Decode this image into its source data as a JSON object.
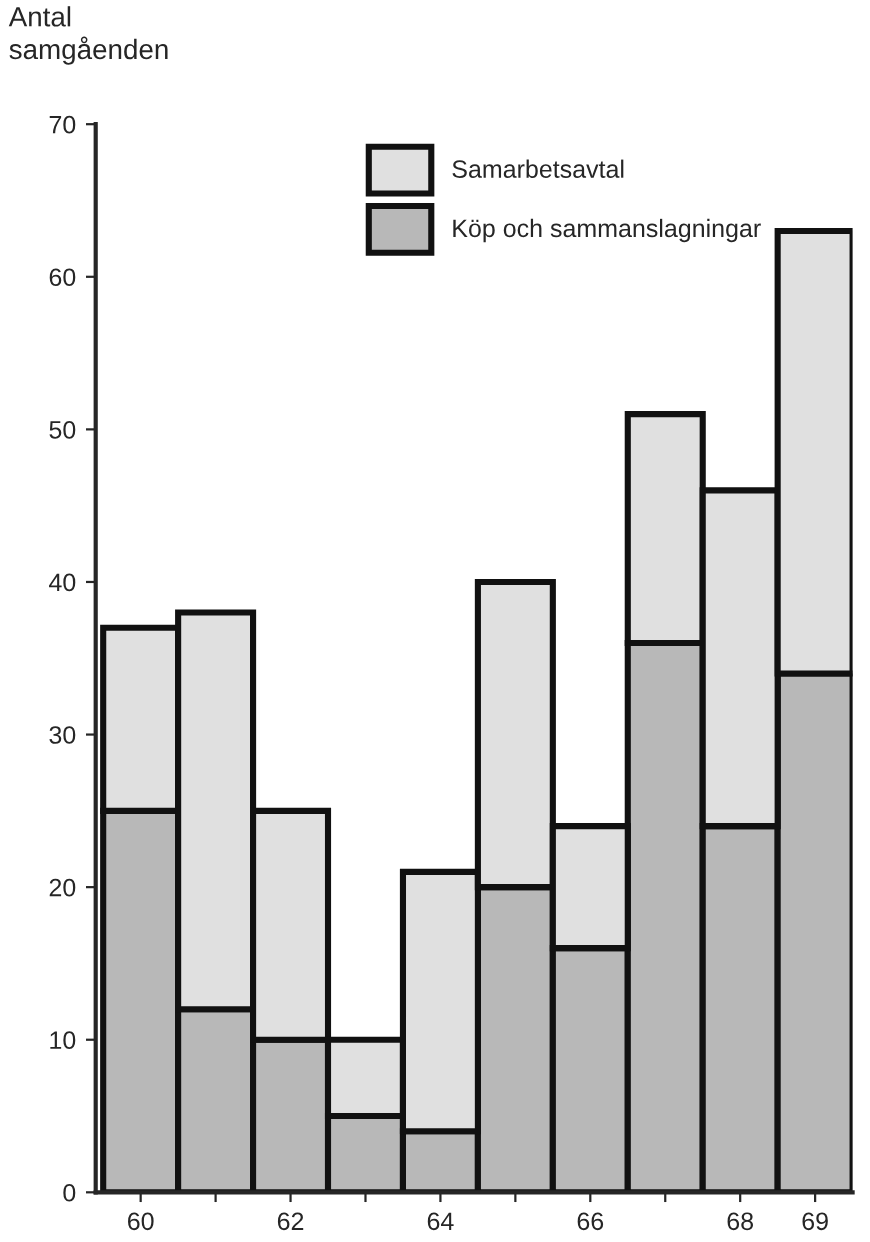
{
  "chart_data": {
    "type": "bar",
    "stacked": true,
    "ylabel": "Antal\nsamgåenden",
    "categories": [
      "60",
      null,
      "62",
      null,
      "64",
      null,
      "66",
      null,
      "68",
      "69"
    ],
    "series": [
      {
        "name": "Köp och sammanslagningar",
        "color": "#b8b8b8",
        "values": [
          25,
          12,
          10,
          5,
          4,
          20,
          16,
          36,
          24,
          34
        ]
      },
      {
        "name": "Samarbetsavtal",
        "color": "#e0e0e0",
        "values": [
          12,
          26,
          15,
          5,
          17,
          20,
          8,
          15,
          22,
          29
        ]
      }
    ],
    "ylim": [
      0,
      70
    ],
    "yticks": [
      0,
      10,
      20,
      30,
      40,
      50,
      60,
      70
    ],
    "grid": false,
    "legend": "top"
  }
}
